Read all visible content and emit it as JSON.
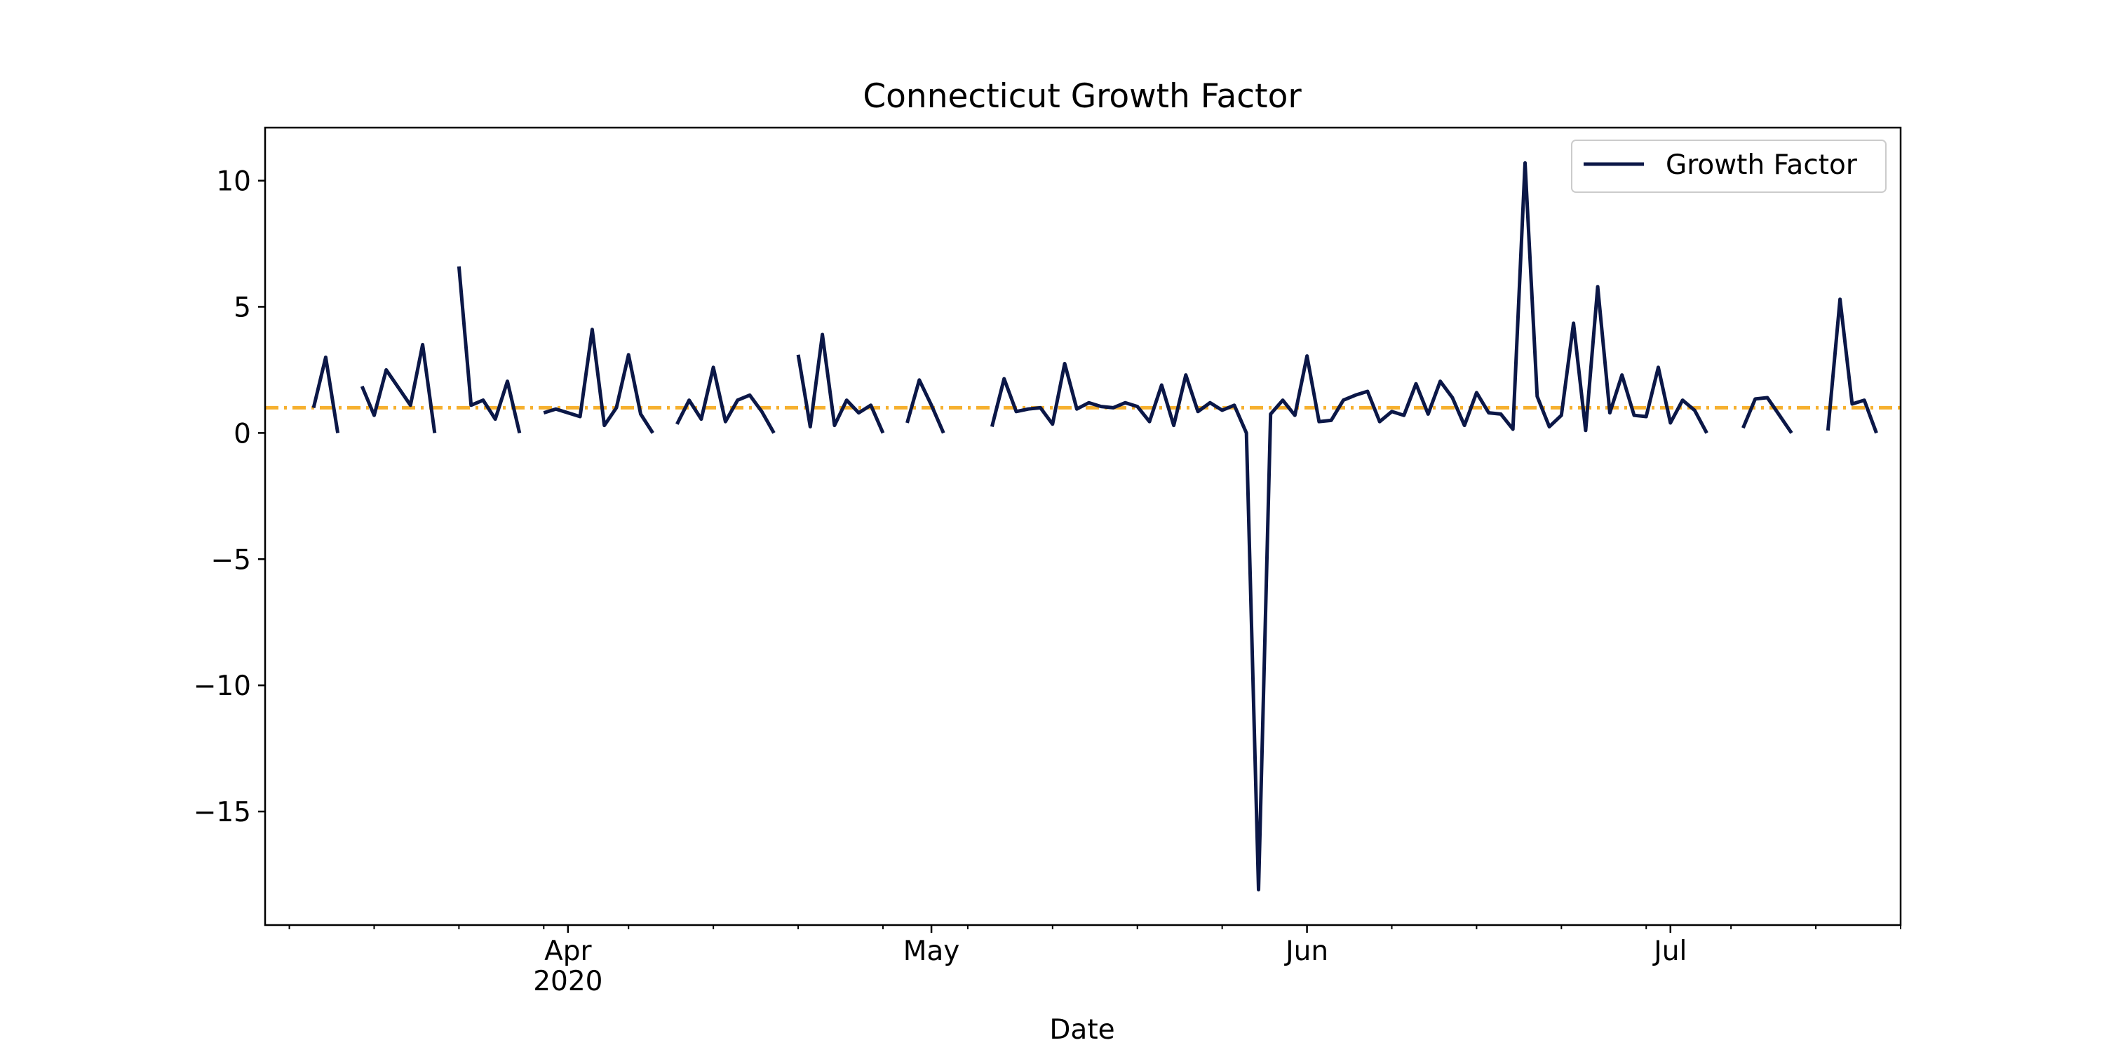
{
  "colors": {
    "series": "#0b1747",
    "reference": "#f6b02e",
    "axes": "#000000",
    "background": "#ffffff"
  },
  "chart_data": {
    "type": "line",
    "title": "Connecticut Growth Factor",
    "xlabel": "Date",
    "ylabel": "",
    "ylim": [
      -19.5,
      12.1
    ],
    "xlim": [
      "2020-03-07",
      "2020-07-20"
    ],
    "grid": false,
    "legend_position": "top-right",
    "x_ticks": [
      {
        "date": "2020-04-01",
        "label": "Apr",
        "sublabel": "2020"
      },
      {
        "date": "2020-05-01",
        "label": "May",
        "sublabel": ""
      },
      {
        "date": "2020-06-01",
        "label": "Jun",
        "sublabel": ""
      },
      {
        "date": "2020-07-01",
        "label": "Jul",
        "sublabel": ""
      }
    ],
    "y_ticks": [
      {
        "value": 10,
        "label": "10"
      },
      {
        "value": 5,
        "label": "5"
      },
      {
        "value": 0,
        "label": "0"
      },
      {
        "value": -5,
        "label": "−5"
      },
      {
        "value": -10,
        "label": "−10"
      },
      {
        "value": -15,
        "label": "−15"
      }
    ],
    "reference_line": {
      "y": 1,
      "style": "dashdot"
    },
    "series": [
      {
        "name": "Growth Factor",
        "segments": [
          [
            [
              "2020-03-11",
              1.0
            ],
            [
              "2020-03-12",
              3.0
            ],
            [
              "2020-03-13",
              0.0
            ]
          ],
          [
            [
              "2020-03-15",
              1.85
            ],
            [
              "2020-03-16",
              0.7
            ],
            [
              "2020-03-17",
              2.5
            ],
            [
              "2020-03-18",
              1.8
            ],
            [
              "2020-03-19",
              1.1
            ],
            [
              "2020-03-20",
              3.5
            ],
            [
              "2020-03-21",
              0.0
            ]
          ],
          [
            [
              "2020-03-23",
              6.6
            ],
            [
              "2020-03-24",
              1.1
            ],
            [
              "2020-03-25",
              1.3
            ],
            [
              "2020-03-26",
              0.55
            ],
            [
              "2020-03-27",
              2.05
            ],
            [
              "2020-03-28",
              0.0
            ]
          ],
          [
            [
              "2020-03-30",
              0.8
            ],
            [
              "2020-03-31",
              0.95
            ],
            [
              "2020-04-01",
              0.8
            ],
            [
              "2020-04-02",
              0.65
            ],
            [
              "2020-04-03",
              4.1
            ],
            [
              "2020-04-04",
              0.3
            ],
            [
              "2020-04-05",
              1.0
            ],
            [
              "2020-04-06",
              3.1
            ],
            [
              "2020-04-07",
              0.75
            ],
            [
              "2020-04-08",
              0.0
            ]
          ],
          [
            [
              "2020-04-10",
              0.35
            ],
            [
              "2020-04-11",
              1.3
            ],
            [
              "2020-04-12",
              0.55
            ],
            [
              "2020-04-13",
              2.6
            ],
            [
              "2020-04-14",
              0.45
            ],
            [
              "2020-04-15",
              1.3
            ],
            [
              "2020-04-16",
              1.5
            ],
            [
              "2020-04-17",
              0.85
            ],
            [
              "2020-04-18",
              0.0
            ]
          ],
          [
            [
              "2020-04-20",
              3.1
            ],
            [
              "2020-04-21",
              0.25
            ],
            [
              "2020-04-22",
              3.9
            ],
            [
              "2020-04-23",
              0.3
            ],
            [
              "2020-04-24",
              1.3
            ],
            [
              "2020-04-25",
              0.8
            ],
            [
              "2020-04-26",
              1.1
            ],
            [
              "2020-04-27",
              0.0
            ]
          ],
          [
            [
              "2020-04-29",
              0.4
            ],
            [
              "2020-04-30",
              2.1
            ],
            [
              "2020-05-01",
              1.1
            ],
            [
              "2020-05-02",
              0.0
            ]
          ],
          [
            [
              "2020-05-06",
              0.25
            ],
            [
              "2020-05-07",
              2.15
            ],
            [
              "2020-05-08",
              0.85
            ],
            [
              "2020-05-09",
              0.95
            ],
            [
              "2020-05-10",
              1.0
            ],
            [
              "2020-05-11",
              0.35
            ],
            [
              "2020-05-12",
              2.75
            ],
            [
              "2020-05-13",
              0.95
            ],
            [
              "2020-05-14",
              1.2
            ],
            [
              "2020-05-15",
              1.05
            ],
            [
              "2020-05-16",
              1.0
            ],
            [
              "2020-05-17",
              1.2
            ],
            [
              "2020-05-18",
              1.05
            ],
            [
              "2020-05-19",
              0.45
            ],
            [
              "2020-05-20",
              1.9
            ],
            [
              "2020-05-21",
              0.3
            ],
            [
              "2020-05-22",
              2.3
            ],
            [
              "2020-05-23",
              0.85
            ],
            [
              "2020-05-24",
              1.2
            ],
            [
              "2020-05-25",
              0.9
            ],
            [
              "2020-05-26",
              1.1
            ],
            [
              "2020-05-27",
              0.0
            ],
            [
              "2020-05-28",
              -18.1
            ],
            [
              "2020-05-29",
              0.75
            ],
            [
              "2020-05-30",
              1.3
            ],
            [
              "2020-05-31",
              0.7
            ],
            [
              "2020-06-01",
              3.05
            ],
            [
              "2020-06-02",
              0.45
            ],
            [
              "2020-06-03",
              0.5
            ],
            [
              "2020-06-04",
              1.3
            ],
            [
              "2020-06-05",
              1.5
            ],
            [
              "2020-06-06",
              1.65
            ],
            [
              "2020-06-07",
              0.45
            ],
            [
              "2020-06-08",
              0.85
            ],
            [
              "2020-06-09",
              0.7
            ],
            [
              "2020-06-10",
              1.95
            ],
            [
              "2020-06-11",
              0.75
            ],
            [
              "2020-06-12",
              2.05
            ],
            [
              "2020-06-13",
              1.4
            ],
            [
              "2020-06-14",
              0.3
            ],
            [
              "2020-06-15",
              1.6
            ],
            [
              "2020-06-16",
              0.8
            ],
            [
              "2020-06-17",
              0.75
            ],
            [
              "2020-06-18",
              0.15
            ],
            [
              "2020-06-19",
              10.7
            ],
            [
              "2020-06-20",
              1.45
            ],
            [
              "2020-06-21",
              0.25
            ],
            [
              "2020-06-22",
              0.7
            ],
            [
              "2020-06-23",
              4.35
            ],
            [
              "2020-06-24",
              0.1
            ],
            [
              "2020-06-25",
              5.8
            ],
            [
              "2020-06-26",
              0.8
            ],
            [
              "2020-06-27",
              2.3
            ],
            [
              "2020-06-28",
              0.7
            ],
            [
              "2020-06-29",
              0.65
            ],
            [
              "2020-06-30",
              2.6
            ],
            [
              "2020-07-01",
              0.4
            ],
            [
              "2020-07-02",
              1.3
            ],
            [
              "2020-07-03",
              0.9
            ],
            [
              "2020-07-04",
              0.0
            ]
          ],
          [
            [
              "2020-07-07",
              0.2
            ],
            [
              "2020-07-08",
              1.35
            ],
            [
              "2020-07-09",
              1.4
            ],
            [
              "2020-07-10",
              0.7
            ],
            [
              "2020-07-11",
              0.0
            ]
          ],
          [
            [
              "2020-07-14",
              0.1
            ],
            [
              "2020-07-15",
              5.3
            ],
            [
              "2020-07-16",
              1.15
            ],
            [
              "2020-07-17",
              1.3
            ],
            [
              "2020-07-18",
              0.0
            ]
          ]
        ]
      }
    ]
  }
}
